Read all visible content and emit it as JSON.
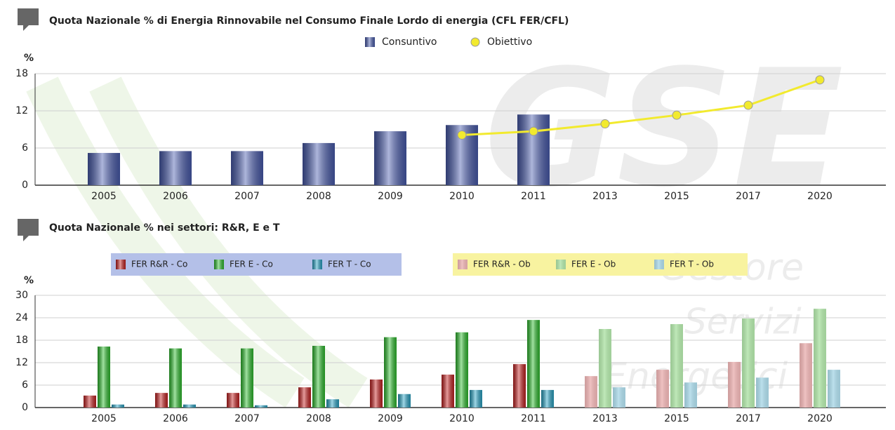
{
  "watermark": [
    "GSE",
    "Gestore",
    "Servizi",
    "Energetici"
  ],
  "chart_data": [
    {
      "type": "bar",
      "title": "Quota Nazionale % di Energia Rinnovabile nel Consumo Finale Lordo di energia (CFL FER/CFL)",
      "y_label": "%",
      "categories": [
        "2005",
        "2006",
        "2007",
        "2008",
        "2009",
        "2010",
        "2011",
        "2013",
        "2015",
        "2017",
        "2020"
      ],
      "series": [
        {
          "name": "Consuntivo",
          "type": "bar",
          "color": "#4a5db0",
          "values": [
            5.2,
            5.5,
            5.5,
            6.8,
            8.7,
            9.7,
            11.4,
            null,
            null,
            null,
            null
          ]
        },
        {
          "name": "Obiettivo",
          "type": "line",
          "color": "#f2ea2e",
          "values": [
            null,
            null,
            null,
            null,
            null,
            8.1,
            8.7,
            9.9,
            11.3,
            12.9,
            17.0
          ]
        }
      ],
      "ylim": [
        0,
        18
      ],
      "yticks": [
        0,
        6,
        12,
        18
      ],
      "grid": true
    },
    {
      "type": "bar",
      "title": "Quota Nazionale %  nei settori: R&R, E e T",
      "y_label": "%",
      "categories": [
        "2005",
        "2006",
        "2007",
        "2008",
        "2009",
        "2010",
        "2011",
        "2013",
        "2015",
        "2017",
        "2020"
      ],
      "series": [
        {
          "name": "FER R&R - Co",
          "color": "#c82222",
          "values": [
            3.2,
            3.9,
            3.9,
            5.4,
            7.5,
            8.8,
            11.6,
            null,
            null,
            null,
            null
          ]
        },
        {
          "name": "FER E - Co",
          "color": "#2fc02f",
          "values": [
            16.3,
            15.8,
            15.8,
            16.5,
            18.8,
            20.1,
            23.4,
            null,
            null,
            null,
            null
          ]
        },
        {
          "name": "FER T - Co",
          "color": "#2aa6c8",
          "values": [
            0.8,
            0.8,
            0.6,
            2.2,
            3.6,
            4.7,
            4.7,
            null,
            null,
            null,
            null
          ]
        },
        {
          "name": "FER R&R - Ob",
          "color": "#ebb3b3",
          "values": [
            null,
            null,
            null,
            null,
            null,
            null,
            null,
            8.4,
            10.1,
            12.2,
            17.2
          ]
        },
        {
          "name": "FER E - Ob",
          "color": "#b0e3a8",
          "values": [
            null,
            null,
            null,
            null,
            null,
            null,
            null,
            21.0,
            22.3,
            23.8,
            26.4
          ]
        },
        {
          "name": "FER T - Ob",
          "color": "#acd9e8",
          "values": [
            null,
            null,
            null,
            null,
            null,
            null,
            null,
            5.4,
            6.7,
            8.0,
            10.1
          ]
        }
      ],
      "ylim": [
        0,
        30
      ],
      "yticks": [
        0,
        6,
        12,
        18,
        24,
        30
      ],
      "grid": true
    }
  ]
}
